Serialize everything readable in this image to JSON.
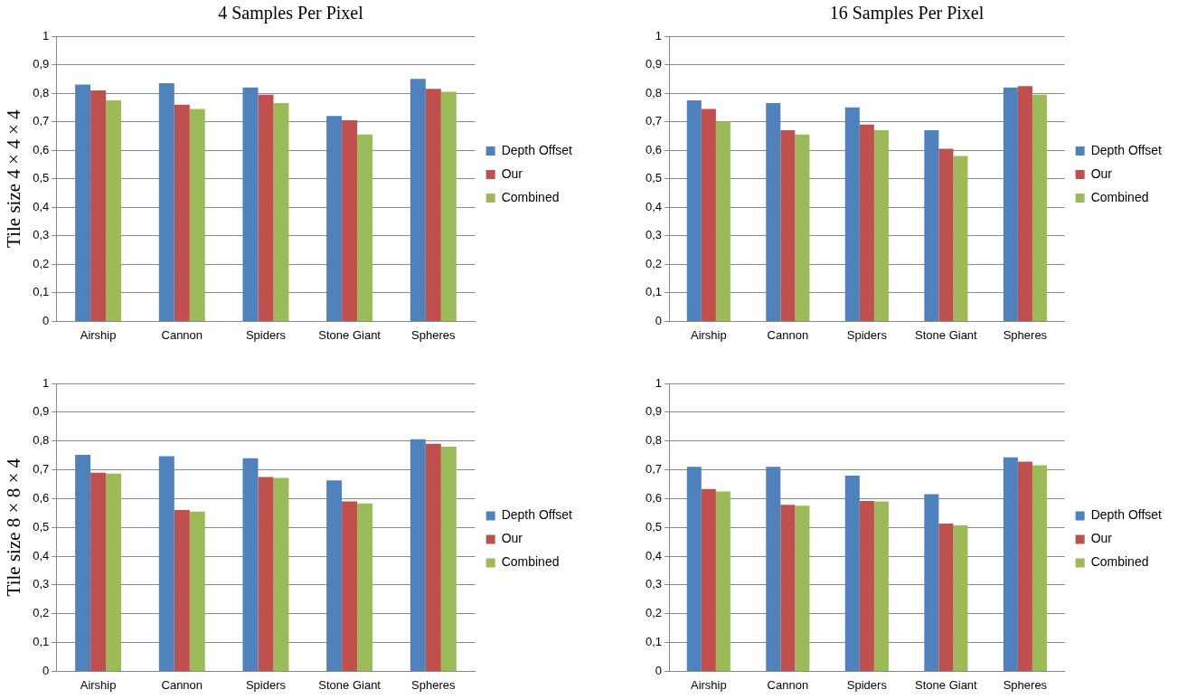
{
  "chart_data": [
    {
      "type": "bar",
      "title": "4 Samples Per Pixel",
      "ylabel": "Tile size 4 × 4 × 4",
      "categories": [
        "Airship",
        "Cannon",
        "Spiders",
        "Stone Giant",
        "Spheres"
      ],
      "series": [
        {
          "name": "Depth Offset",
          "color": "#4f81bd",
          "values": [
            0.83,
            0.835,
            0.82,
            0.72,
            0.85
          ]
        },
        {
          "name": "Our",
          "color": "#c0504d",
          "values": [
            0.81,
            0.76,
            0.795,
            0.705,
            0.815
          ]
        },
        {
          "name": "Combined",
          "color": "#9bbb59",
          "values": [
            0.775,
            0.745,
            0.765,
            0.655,
            0.805
          ]
        }
      ],
      "ylim": [
        0,
        1
      ],
      "yticks": [
        {
          "value": 0,
          "label": "0"
        },
        {
          "value": 0.1,
          "label": "0,1"
        },
        {
          "value": 0.2,
          "label": "0,2"
        },
        {
          "value": 0.3,
          "label": "0,3"
        },
        {
          "value": 0.4,
          "label": "0,4"
        },
        {
          "value": 0.5,
          "label": "0,5"
        },
        {
          "value": 0.6,
          "label": "0,6"
        },
        {
          "value": 0.7,
          "label": "0,7"
        },
        {
          "value": 0.8,
          "label": "0,8"
        },
        {
          "value": 0.9,
          "label": "0,9"
        },
        {
          "value": 1,
          "label": "1"
        }
      ],
      "grid": "y",
      "legend": "right"
    },
    {
      "type": "bar",
      "title": "16 Samples Per Pixel",
      "categories": [
        "Airship",
        "Cannon",
        "Spiders",
        "Stone Giant",
        "Spheres"
      ],
      "series": [
        {
          "name": "Depth Offset",
          "color": "#4f81bd",
          "values": [
            0.775,
            0.765,
            0.75,
            0.67,
            0.82
          ]
        },
        {
          "name": "Our",
          "color": "#c0504d",
          "values": [
            0.745,
            0.67,
            0.69,
            0.605,
            0.825
          ]
        },
        {
          "name": "Combined",
          "color": "#9bbb59",
          "values": [
            0.7,
            0.655,
            0.67,
            0.58,
            0.795
          ]
        }
      ],
      "ylim": [
        0,
        1
      ],
      "yticks": [
        {
          "value": 0,
          "label": "0"
        },
        {
          "value": 0.1,
          "label": "0,1"
        },
        {
          "value": 0.2,
          "label": "0,2"
        },
        {
          "value": 0.3,
          "label": "0,3"
        },
        {
          "value": 0.4,
          "label": "0,4"
        },
        {
          "value": 0.5,
          "label": "0,5"
        },
        {
          "value": 0.6,
          "label": "0,6"
        },
        {
          "value": 0.7,
          "label": "0,7"
        },
        {
          "value": 0.8,
          "label": "0,8"
        },
        {
          "value": 0.9,
          "label": "0,9"
        },
        {
          "value": 1,
          "label": "1"
        }
      ],
      "grid": "y",
      "legend": "right"
    },
    {
      "type": "bar",
      "ylabel": "Tile size 8 × 8 × 4",
      "categories": [
        "Airship",
        "Cannon",
        "Spiders",
        "Stone Giant",
        "Spheres"
      ],
      "series": [
        {
          "name": "Depth Offset",
          "color": "#4f81bd",
          "values": [
            0.752,
            0.747,
            0.74,
            0.663,
            0.806
          ]
        },
        {
          "name": "Our",
          "color": "#c0504d",
          "values": [
            0.69,
            0.56,
            0.675,
            0.59,
            0.79
          ]
        },
        {
          "name": "Combined",
          "color": "#9bbb59",
          "values": [
            0.687,
            0.555,
            0.672,
            0.583,
            0.78
          ]
        }
      ],
      "ylim": [
        0,
        1
      ],
      "yticks": [
        {
          "value": 0,
          "label": "0"
        },
        {
          "value": 0.1,
          "label": "0,1"
        },
        {
          "value": 0.2,
          "label": "0,2"
        },
        {
          "value": 0.3,
          "label": "0,3"
        },
        {
          "value": 0.4,
          "label": "0,4"
        },
        {
          "value": 0.5,
          "label": "0,5"
        },
        {
          "value": 0.6,
          "label": "0,6"
        },
        {
          "value": 0.7,
          "label": "0,7"
        },
        {
          "value": 0.8,
          "label": "0,8"
        },
        {
          "value": 0.9,
          "label": "0,9"
        },
        {
          "value": 1,
          "label": "1"
        }
      ],
      "grid": "y",
      "legend": "right"
    },
    {
      "type": "bar",
      "categories": [
        "Airship",
        "Cannon",
        "Spiders",
        "Stone Giant",
        "Spheres"
      ],
      "series": [
        {
          "name": "Depth Offset",
          "color": "#4f81bd",
          "values": [
            0.71,
            0.71,
            0.68,
            0.615,
            0.743
          ]
        },
        {
          "name": "Our",
          "color": "#c0504d",
          "values": [
            0.633,
            0.578,
            0.592,
            0.513,
            0.728
          ]
        },
        {
          "name": "Combined",
          "color": "#9bbb59",
          "values": [
            0.625,
            0.575,
            0.59,
            0.507,
            0.716
          ]
        }
      ],
      "ylim": [
        0,
        1
      ],
      "yticks": [
        {
          "value": 0,
          "label": "0"
        },
        {
          "value": 0.1,
          "label": "0,1"
        },
        {
          "value": 0.2,
          "label": "0,2"
        },
        {
          "value": 0.3,
          "label": "0,3"
        },
        {
          "value": 0.4,
          "label": "0,4"
        },
        {
          "value": 0.5,
          "label": "0,5"
        },
        {
          "value": 0.6,
          "label": "0,6"
        },
        {
          "value": 0.7,
          "label": "0,7"
        },
        {
          "value": 0.8,
          "label": "0,8"
        },
        {
          "value": 0.9,
          "label": "0,9"
        },
        {
          "value": 1,
          "label": "1"
        }
      ],
      "grid": "y",
      "legend": "right"
    }
  ]
}
